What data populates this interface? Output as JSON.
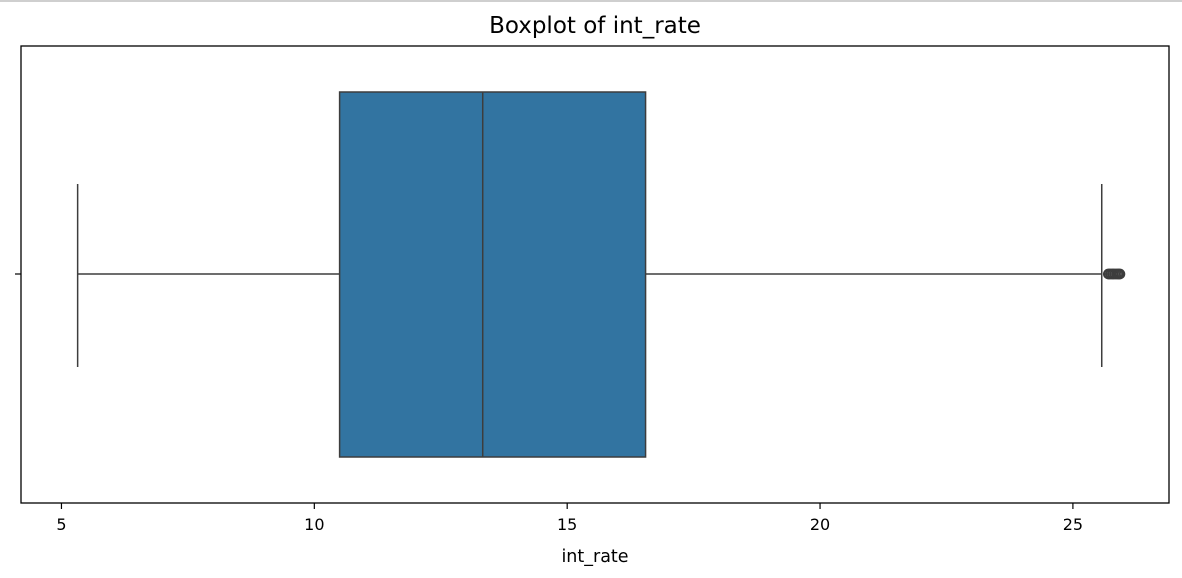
{
  "chart_data": {
    "type": "box",
    "title": "Boxplot of int_rate",
    "xlabel": "int_rate",
    "ylabel": "",
    "xlim": [
      4.2,
      26.9
    ],
    "xticks": [
      5,
      10,
      15,
      20,
      25
    ],
    "xtick_labels": [
      "5",
      "10",
      "15",
      "20",
      "25"
    ],
    "grid": false,
    "orientation": "horizontal",
    "box": {
      "whisker_low": 5.32,
      "q1": 10.5,
      "median": 13.33,
      "q3": 16.55,
      "whisker_high": 25.57
    },
    "outliers": [
      25.7,
      25.72,
      25.75,
      25.78,
      25.8,
      25.83,
      25.86,
      25.89,
      25.91,
      25.93
    ],
    "colors": {
      "box_fill": "#3274a1",
      "lines": "#3d3d3d",
      "spine": "#000000"
    }
  }
}
